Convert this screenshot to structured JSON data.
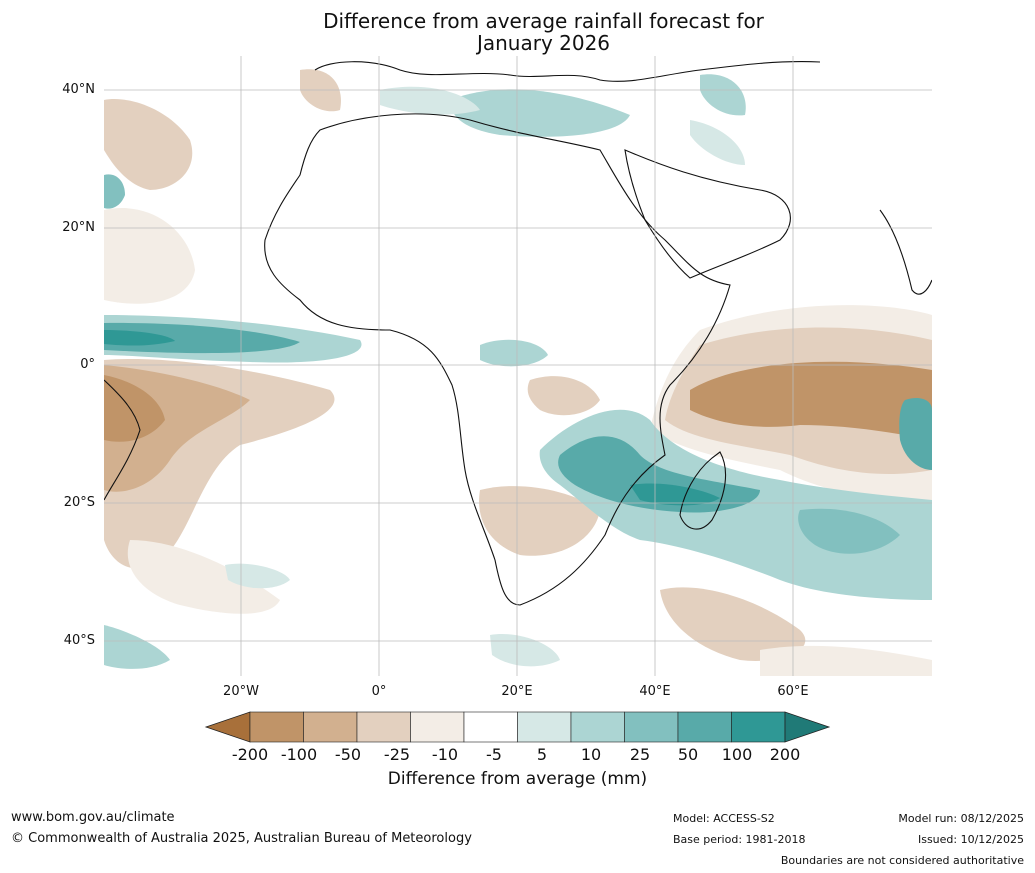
{
  "title": {
    "line1": "Difference from average rainfall forecast for",
    "line2": "January 2026"
  },
  "map": {
    "lat_labels": [
      "40°N",
      "20°N",
      "0°",
      "20°S",
      "40°S"
    ],
    "lon_labels": [
      "20°W",
      "0°",
      "20°E",
      "40°E",
      "60°E"
    ],
    "extent": {
      "lon": [
        -40,
        80
      ],
      "lat": [
        -45,
        45
      ]
    }
  },
  "colorbar": {
    "ticks": [
      "-200",
      "-100",
      "-50",
      "-25",
      "-10",
      "-5",
      "5",
      "10",
      "25",
      "50",
      "100",
      "200"
    ],
    "colors": [
      "#a8703a",
      "#c09468",
      "#d2b08f",
      "#e3d0bf",
      "#f3ede6",
      "#ffffff",
      "#d6e8e6",
      "#acd5d3",
      "#82c0bf",
      "#58aaa9",
      "#2f9895",
      "#207a77"
    ],
    "label": "Difference from average (mm)"
  },
  "footer": {
    "url": "www.bom.gov.au/climate",
    "copyright": "© Commonwealth of Australia 2025, Australian Bureau of Meteorology",
    "model": "Model: ACCESS-S2",
    "base_period": "Base period: 1981-2018",
    "model_run": "Model run: 08/12/2025",
    "issued": "Issued: 10/12/2025",
    "disclaimer": "Boundaries are not considered authoritative"
  }
}
